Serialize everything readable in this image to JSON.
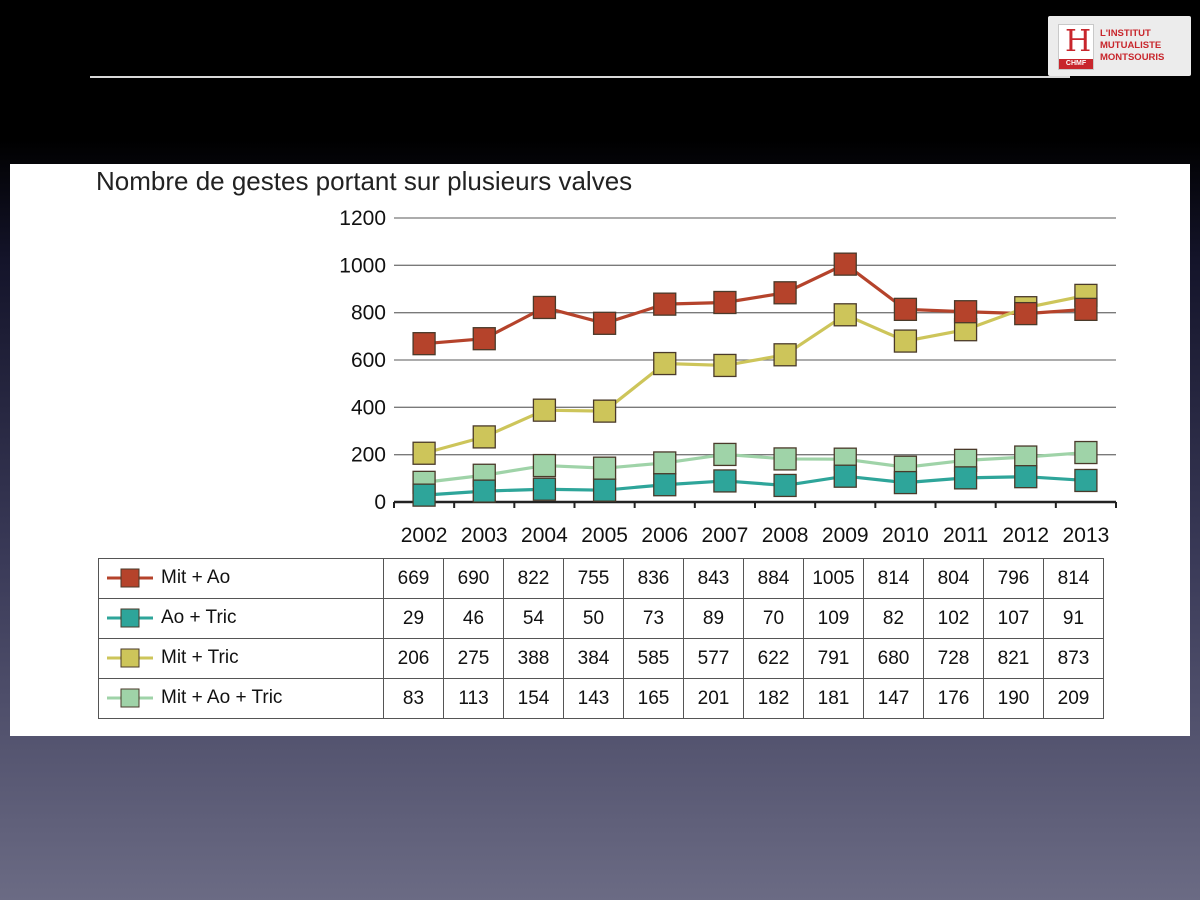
{
  "logo": {
    "lines": [
      "L'INSTITUT",
      "MUTUALISTE",
      "MONTSOURIS"
    ],
    "mark_letter": "H",
    "mark_badge": "CHMF",
    "color": "#c8262c"
  },
  "chart_data": {
    "type": "line",
    "title": "Nombre de gestes portant sur plusieurs valves",
    "xlabel": "",
    "ylabel": "",
    "ylim": [
      0,
      1200
    ],
    "yticks": [
      0,
      200,
      400,
      600,
      800,
      1000,
      1200
    ],
    "grid": true,
    "categories": [
      "2002",
      "2003",
      "2004",
      "2005",
      "2006",
      "2007",
      "2008",
      "2009",
      "2010",
      "2011",
      "2012",
      "2013"
    ],
    "series": [
      {
        "name": "Mit + Ao",
        "color": "#b5432b",
        "values": [
          669,
          690,
          822,
          755,
          836,
          843,
          884,
          1005,
          814,
          804,
          796,
          814
        ]
      },
      {
        "name": "Ao + Tric",
        "color": "#2ea59a",
        "values": [
          29,
          46,
          54,
          50,
          73,
          89,
          70,
          109,
          82,
          102,
          107,
          91
        ]
      },
      {
        "name": "Mit + Tric",
        "color": "#cdc55a",
        "values": [
          206,
          275,
          388,
          384,
          585,
          577,
          622,
          791,
          680,
          728,
          821,
          873
        ]
      },
      {
        "name": "Mit + Ao + Tric",
        "color": "#9fd3a8",
        "values": [
          83,
          113,
          154,
          143,
          165,
          201,
          182,
          181,
          147,
          176,
          190,
          209
        ]
      }
    ]
  }
}
